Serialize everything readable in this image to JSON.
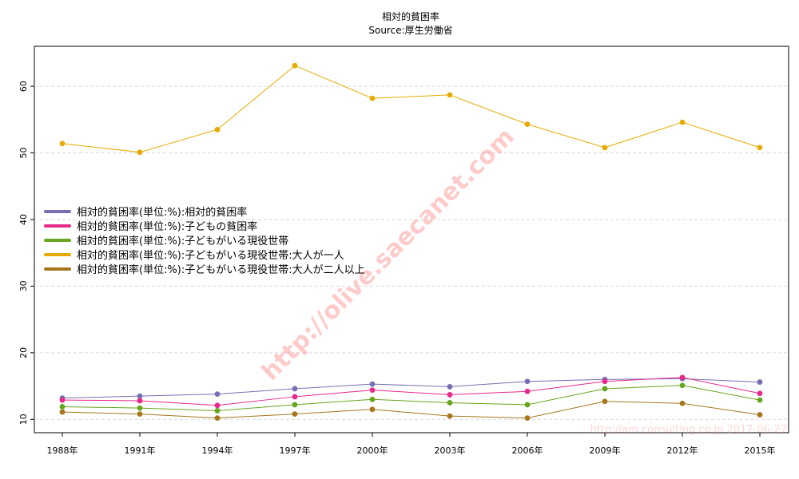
{
  "chart_data": {
    "type": "line",
    "title": "相対的貧困率",
    "subtitle": "Source:厚生労働省",
    "xlabel": "",
    "ylabel": "",
    "categories": [
      "1988年",
      "1991年",
      "1994年",
      "1997年",
      "2000年",
      "2003年",
      "2006年",
      "2009年",
      "2012年",
      "2015年"
    ],
    "ylim": [
      8,
      66
    ],
    "yticks": [
      10,
      20,
      30,
      40,
      50,
      60
    ],
    "grid": true,
    "legend_position": "left-middle",
    "series": [
      {
        "name": "相対的貧困率(単位:%):相対的貧困率",
        "color": "#7570b3",
        "values": [
          13.2,
          13.5,
          13.8,
          14.6,
          15.3,
          14.9,
          15.7,
          16.0,
          16.1,
          15.6
        ]
      },
      {
        "name": "相対的貧困率(単位:%):子どもの貧困率",
        "color": "#e7298a",
        "values": [
          12.9,
          12.8,
          12.1,
          13.4,
          14.4,
          13.7,
          14.2,
          15.7,
          16.3,
          13.9
        ]
      },
      {
        "name": "相対的貧困率(単位:%):子どもがいる現役世帯",
        "color": "#66a61e",
        "values": [
          11.9,
          11.7,
          11.3,
          12.2,
          13.0,
          12.5,
          12.2,
          14.6,
          15.1,
          12.9
        ]
      },
      {
        "name": "相対的貧困率(単位:%):子どもがいる現役世帯:大人が一人",
        "color": "#e6ab02",
        "values": [
          51.4,
          50.1,
          53.5,
          63.1,
          58.2,
          58.7,
          54.3,
          50.8,
          54.6,
          50.8
        ]
      },
      {
        "name": "相対的貧困率(単位:%):子どもがいる現役世帯:大人が二人以上",
        "color": "#a6761d",
        "values": [
          11.1,
          10.8,
          10.2,
          10.8,
          11.5,
          10.5,
          10.2,
          12.7,
          12.4,
          10.7
        ]
      }
    ]
  },
  "watermark": {
    "main": "http://olive.saecanet.com",
    "corner": "http://am.consulting.co.jp 2017-06-27"
  }
}
